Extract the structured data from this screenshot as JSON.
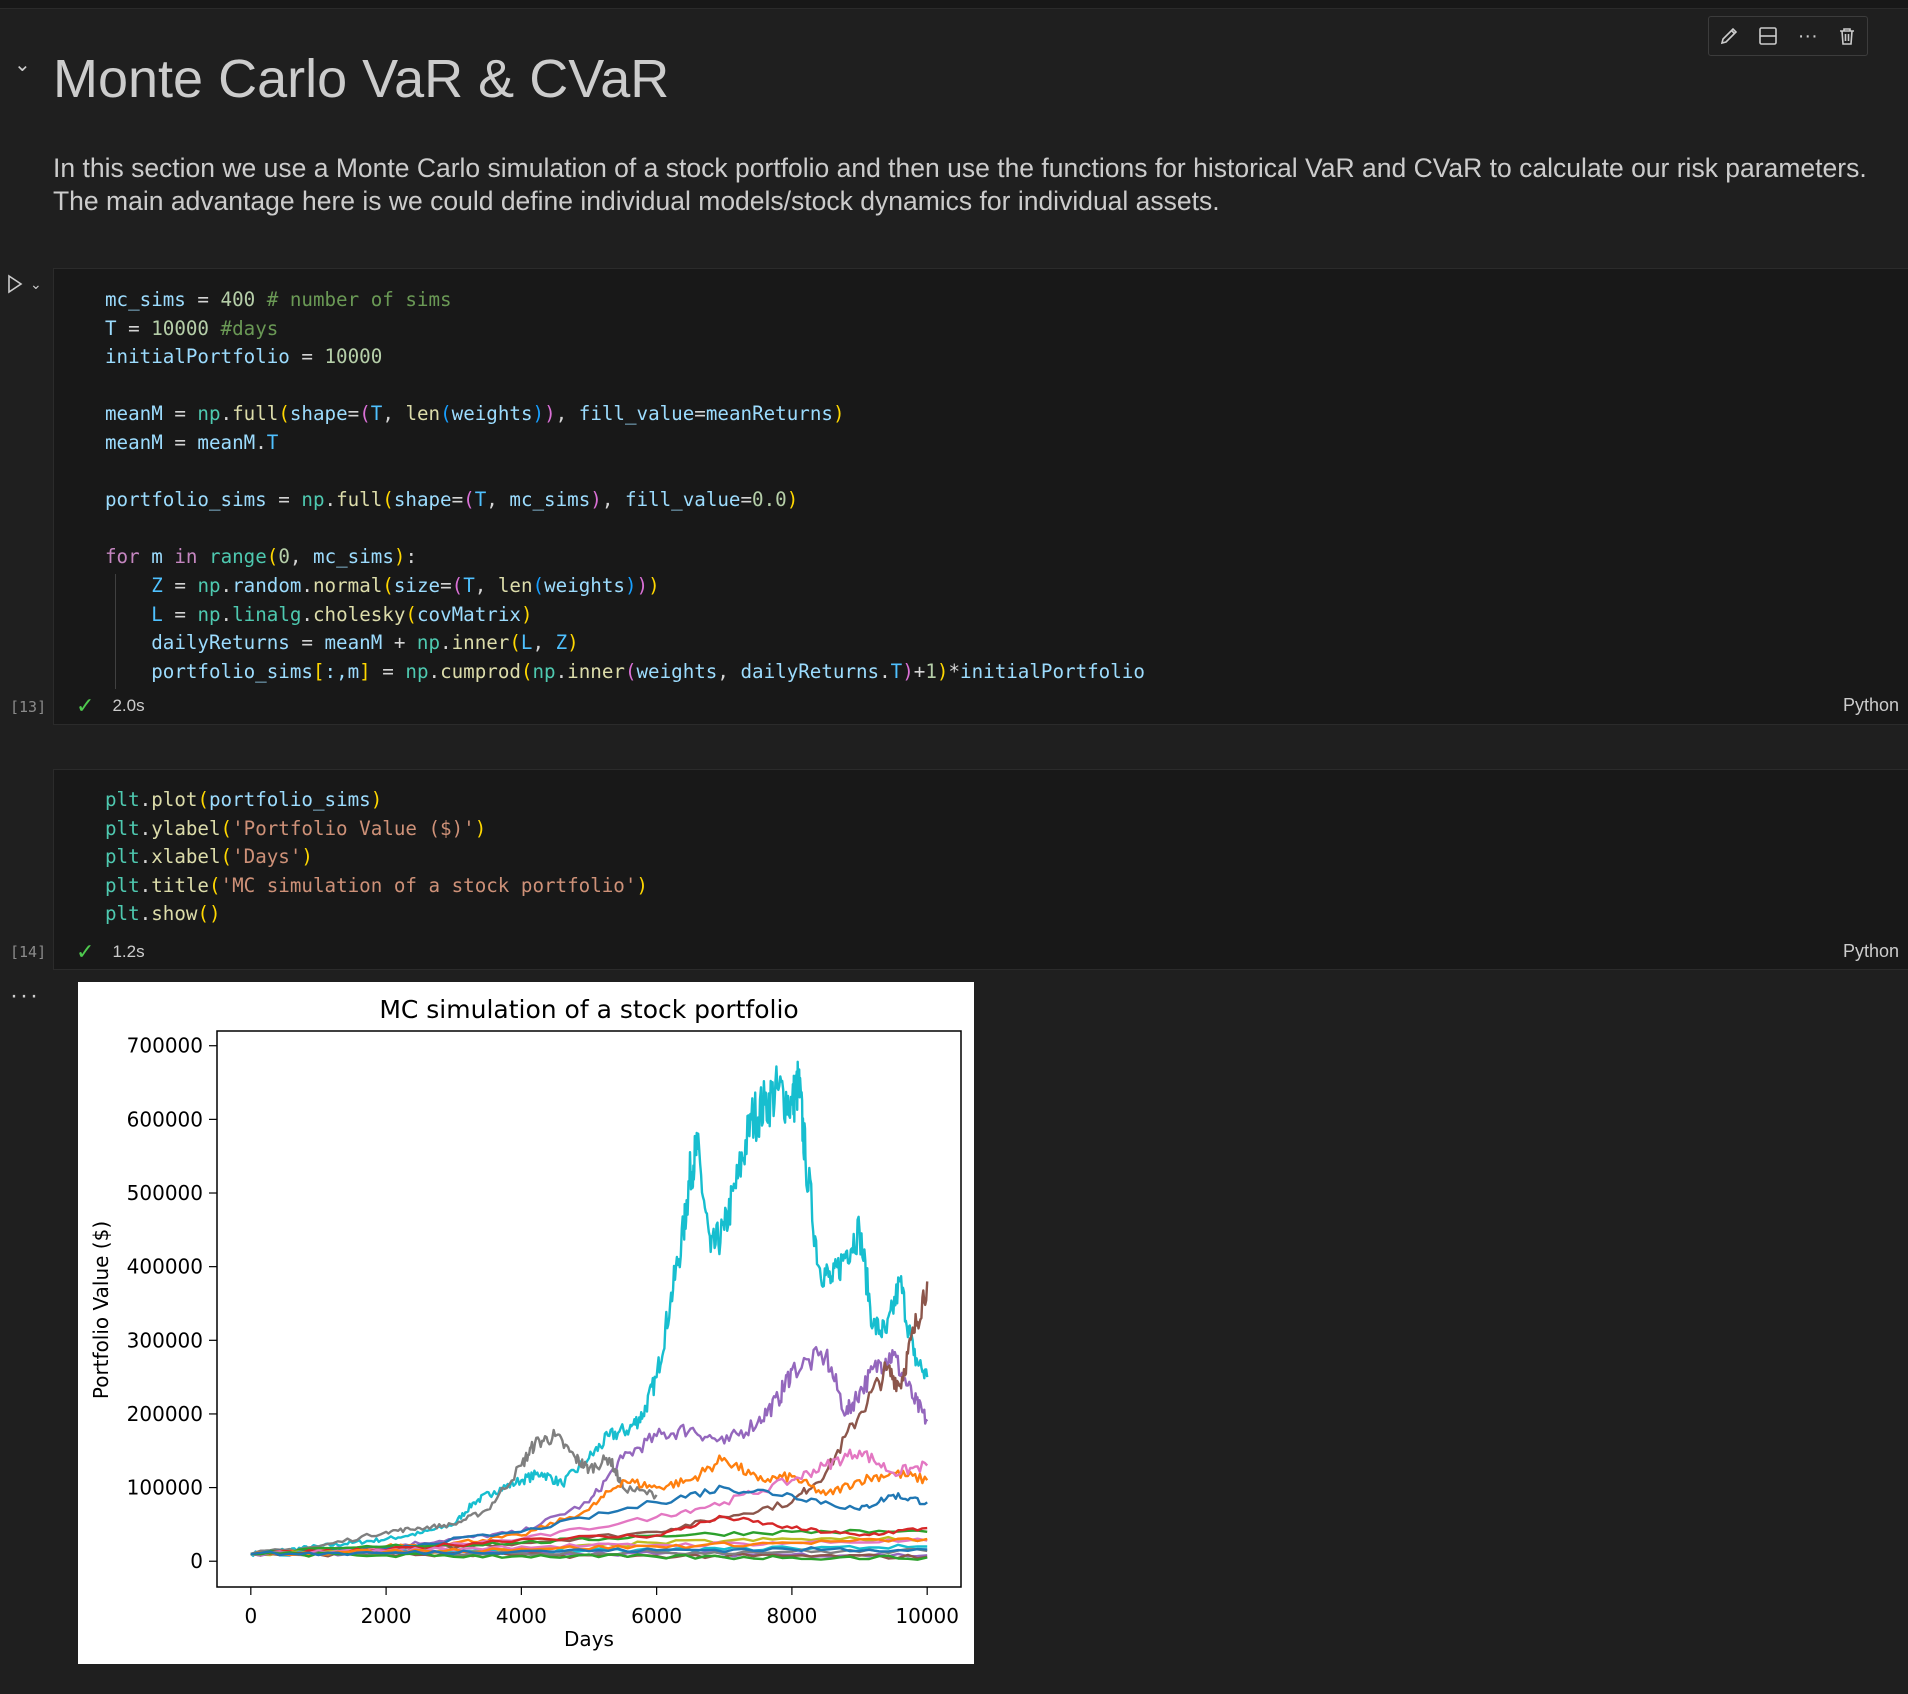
{
  "markdown": {
    "title": "Monte Carlo VaR & CVaR",
    "paragraph": "In this section we use a Monte Carlo simulation of a stock portfolio and then use the functions for historical VaR and CVaR to calculate our risk parameters. The main advantage here is we could define individual models/stock dynamics for individual assets."
  },
  "toolbar": {
    "icons": [
      "pencil-icon",
      "split-cell-icon",
      "more-icon",
      "trash-icon"
    ]
  },
  "cells": [
    {
      "exec_count": "[13]",
      "status_time": "2.0s",
      "language": "Python"
    },
    {
      "exec_count": "[14]",
      "status_time": "1.2s",
      "language": "Python"
    }
  ],
  "code1": {
    "line1": {
      "var": "mc_sims",
      "op": " = ",
      "num": "400",
      "comment": " # number of sims"
    },
    "line2": {
      "var": "T",
      "op": " = ",
      "num": "10000",
      "comment": " #days"
    },
    "line3": {
      "var": "initialPortfolio",
      "op": " = ",
      "num": "10000"
    },
    "line5": {
      "a": "meanM",
      "b": "np",
      "c": "full",
      "d": "shape",
      "e": "T",
      "f": "len",
      "g": "weights",
      "h": "fill_value",
      "i": "meanReturns"
    },
    "line6": {
      "a": "meanM",
      "b": "meanM",
      "c": "T"
    },
    "line8": {
      "a": "portfolio_sims",
      "b": "np",
      "c": "full",
      "d": "shape",
      "e": "T",
      "f": "mc_sims",
      "g": "fill_value",
      "h": "0.0"
    },
    "line10": {
      "a": "for",
      "b": "m",
      "c": "in",
      "d": "range",
      "e": "0",
      "f": "mc_sims"
    },
    "line11": {
      "a": "Z",
      "b": "np",
      "c": "random",
      "d": "normal",
      "e": "size",
      "f": "T",
      "g": "len",
      "h": "weights"
    },
    "line12": {
      "a": "L",
      "b": "np",
      "c": "linalg",
      "d": "cholesky",
      "e": "covMatrix"
    },
    "line13": {
      "a": "dailyReturns",
      "b": "meanM",
      "c": "np",
      "d": "inner",
      "e": "L",
      "f": "Z"
    },
    "line14": {
      "a": "portfolio_sims",
      "b": ":,m",
      "c": "np",
      "d": "cumprod",
      "e": "np",
      "f": "inner",
      "g": "weights",
      "h": "dailyReturns",
      "i": "T",
      "j": "1",
      "k": "initialPortfolio"
    }
  },
  "code2": {
    "line1": {
      "a": "plt",
      "b": "plot",
      "c": "portfolio_sims"
    },
    "line2": {
      "a": "plt",
      "b": "ylabel",
      "c": "'Portfolio Value ($)'"
    },
    "line3": {
      "a": "plt",
      "b": "xlabel",
      "c": "'Days'"
    },
    "line4": {
      "a": "plt",
      "b": "title",
      "c": "'MC simulation of a stock portfolio'"
    },
    "line5": {
      "a": "plt",
      "b": "show"
    }
  },
  "chart_data": {
    "type": "line",
    "title": "MC simulation of a stock portfolio",
    "xlabel": "Days",
    "ylabel": "Portfolio Value ($)",
    "xlim": [
      -500,
      10500
    ],
    "ylim": [
      -35000,
      720000
    ],
    "xticks": [
      "0",
      "2000",
      "4000",
      "6000",
      "8000",
      "10000"
    ],
    "yticks": [
      "0",
      "100000",
      "200000",
      "300000",
      "400000",
      "500000",
      "600000",
      "700000"
    ],
    "grid": false,
    "legend": "none",
    "series": [
      {
        "color": "#17becf",
        "x": [
          0,
          500,
          1000,
          1500,
          2000,
          2500,
          3000,
          3300,
          3600,
          4000,
          4300,
          4600,
          5000,
          5300,
          5600,
          5800,
          6000,
          6200,
          6400,
          6500,
          6600,
          6800,
          7000,
          7200,
          7400,
          7600,
          7800,
          8000,
          8100,
          8200,
          8400,
          8600,
          8800,
          9000,
          9200,
          9400,
          9600,
          9800,
          10000
        ],
        "y": [
          10000,
          15000,
          20000,
          25000,
          30000,
          38000,
          50000,
          80000,
          95000,
          110000,
          120000,
          105000,
          140000,
          170000,
          180000,
          200000,
          250000,
          350000,
          450000,
          530000,
          560000,
          420000,
          450000,
          520000,
          600000,
          620000,
          640000,
          620000,
          650000,
          550000,
          400000,
          380000,
          420000,
          450000,
          320000,
          310000,
          380000,
          280000,
          250000
        ]
      },
      {
        "color": "#9467bd",
        "x": [
          0,
          1000,
          2000,
          3000,
          4000,
          5000,
          5500,
          6000,
          6500,
          7000,
          7500,
          7800,
          8000,
          8500,
          8800,
          9000,
          9300,
          9500,
          9800,
          10000
        ],
        "y": [
          10000,
          15000,
          20000,
          30000,
          40000,
          80000,
          140000,
          170000,
          180000,
          160000,
          190000,
          220000,
          260000,
          280000,
          200000,
          230000,
          270000,
          280000,
          220000,
          190000
        ]
      },
      {
        "color": "#8c564b",
        "x": [
          0,
          2000,
          4000,
          6000,
          7000,
          8000,
          8500,
          9000,
          9400,
          9600,
          9800,
          10000
        ],
        "y": [
          10000,
          15000,
          25000,
          40000,
          60000,
          80000,
          120000,
          200000,
          260000,
          240000,
          310000,
          380000
        ]
      },
      {
        "color": "#7f7f7f",
        "x": [
          0,
          1000,
          2000,
          2500,
          3000,
          3500,
          4000,
          4200,
          4500,
          4800,
          5000,
          5300,
          5500,
          6000
        ],
        "y": [
          10000,
          20000,
          40000,
          45000,
          50000,
          70000,
          130000,
          160000,
          170000,
          140000,
          125000,
          140000,
          100000,
          90000
        ]
      },
      {
        "color": "#ff7f0e",
        "x": [
          0,
          1000,
          2000,
          3000,
          4000,
          5000,
          5500,
          6000,
          6500,
          7000,
          7500,
          8000,
          8500,
          9000,
          9500,
          10000
        ],
        "y": [
          10000,
          12000,
          20000,
          25000,
          35000,
          70000,
          110000,
          100000,
          110000,
          140000,
          110000,
          115000,
          90000,
          110000,
          120000,
          110000
        ]
      },
      {
        "color": "#e377c2",
        "x": [
          0,
          2000,
          4000,
          6000,
          7000,
          8000,
          8500,
          9000,
          9500,
          10000
        ],
        "y": [
          10000,
          15000,
          30000,
          60000,
          80000,
          110000,
          130000,
          150000,
          120000,
          130000
        ]
      },
      {
        "color": "#1f77b4",
        "x": [
          0,
          2000,
          4000,
          6000,
          7000,
          8000,
          9000,
          9500,
          10000
        ],
        "y": [
          10000,
          18000,
          40000,
          80000,
          100000,
          90000,
          70000,
          90000,
          80000
        ]
      },
      {
        "color": "#2ca02c",
        "x": [
          0,
          2000,
          4000,
          6000,
          8000,
          10000
        ],
        "y": [
          10000,
          20000,
          25000,
          35000,
          40000,
          40000
        ]
      },
      {
        "color": "#d62728",
        "x": [
          0,
          2000,
          4000,
          6000,
          7000,
          8000,
          9000,
          10000
        ],
        "y": [
          10000,
          15000,
          30000,
          35000,
          60000,
          45000,
          35000,
          45000
        ]
      },
      {
        "color": "#bcbd22",
        "x": [
          0,
          2000,
          4000,
          6000,
          8000,
          10000
        ],
        "y": [
          10000,
          12000,
          15000,
          25000,
          30000,
          30000
        ]
      },
      {
        "color": "#17becf",
        "x": [
          0,
          2000,
          4000,
          6000,
          8000,
          10000
        ],
        "y": [
          10000,
          12000,
          13000,
          15000,
          18000,
          20000
        ]
      },
      {
        "color": "#9467bd",
        "x": [
          0,
          2000,
          4000,
          6000,
          8000,
          10000
        ],
        "y": [
          10000,
          11000,
          12000,
          10000,
          9000,
          8000
        ]
      },
      {
        "color": "#8c564b",
        "x": [
          0,
          2000,
          4000,
          6000,
          8000,
          10000
        ],
        "y": [
          10000,
          9000,
          8000,
          7000,
          7000,
          6000
        ]
      },
      {
        "color": "#e377c2",
        "x": [
          0,
          2000,
          4000,
          6000,
          8000,
          10000
        ],
        "y": [
          10000,
          14000,
          20000,
          22000,
          25000,
          28000
        ]
      },
      {
        "color": "#7f7f7f",
        "x": [
          0,
          2000,
          4000,
          6000,
          8000,
          10000
        ],
        "y": [
          10000,
          10000,
          11000,
          12000,
          13000,
          14000
        ]
      },
      {
        "color": "#ff7f0e",
        "x": [
          0,
          2000,
          4000,
          6000,
          8000,
          10000
        ],
        "y": [
          10000,
          13000,
          17000,
          20000,
          25000,
          30000
        ]
      },
      {
        "color": "#2ca02c",
        "x": [
          0,
          2000,
          4000,
          6000,
          8000,
          10000
        ],
        "y": [
          10000,
          8000,
          7000,
          6000,
          5000,
          5000
        ]
      },
      {
        "color": "#1f77b4",
        "x": [
          0,
          2000,
          4000,
          6000,
          8000,
          10000
        ],
        "y": [
          10000,
          11000,
          14000,
          15000,
          16000,
          16000
        ]
      }
    ]
  }
}
